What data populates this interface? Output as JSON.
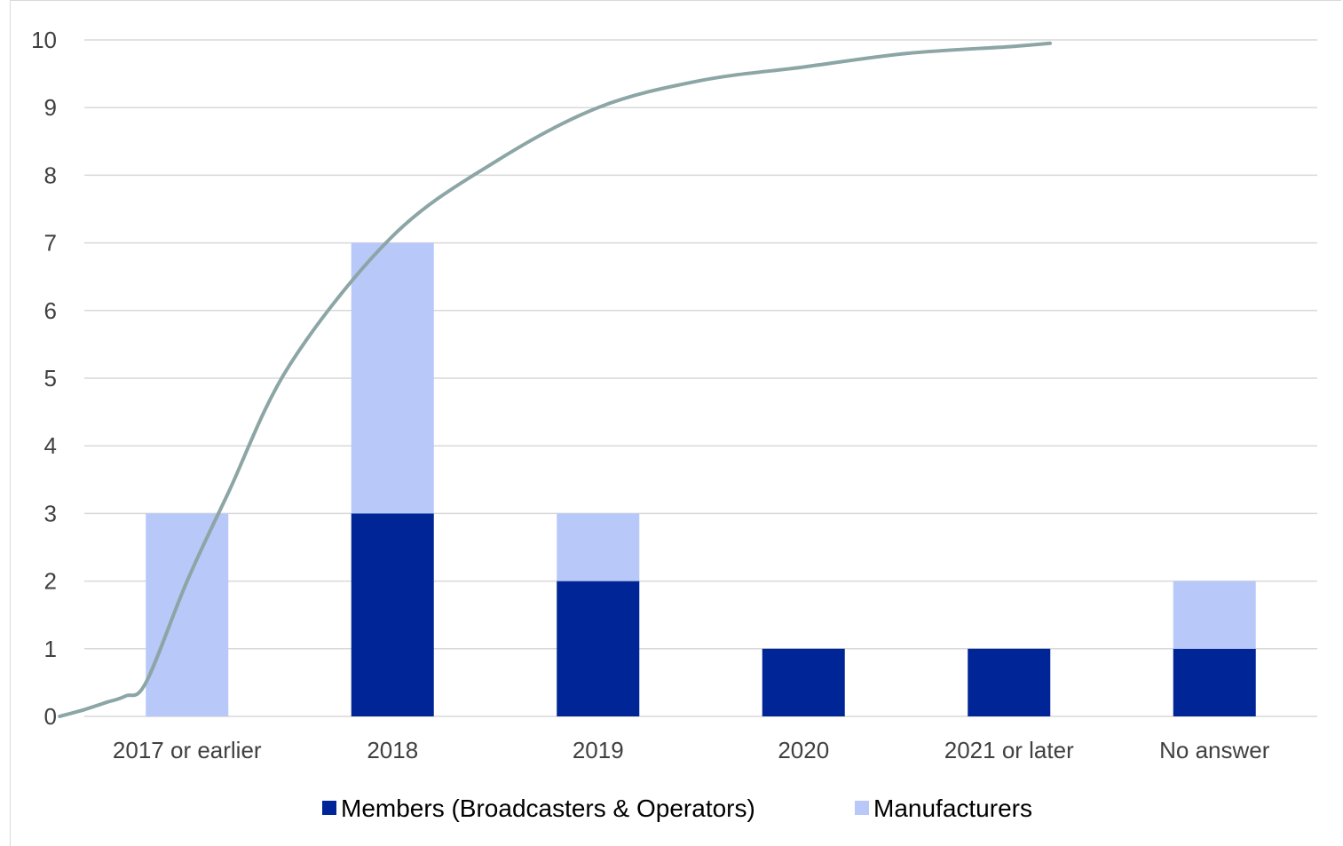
{
  "chart_data": {
    "type": "bar",
    "stacked": true,
    "categories": [
      "2017 or earlier",
      "2018",
      "2019",
      "2020",
      "2021 or later",
      "No answer"
    ],
    "series": [
      {
        "name": "Members (Broadcasters & Operators)",
        "color": "#002596",
        "values": [
          0,
          3,
          2,
          1,
          1,
          1
        ]
      },
      {
        "name": "Manufacturers",
        "color": "#b8c8f8",
        "values": [
          3,
          4,
          1,
          0,
          0,
          1
        ]
      }
    ],
    "trend_line": {
      "color": "#8ca5a5",
      "x": [
        -0.62,
        -0.5,
        -0.4,
        -0.3,
        -0.2,
        0.0,
        0.2,
        0.5,
        1.0,
        1.5,
        2.0,
        2.5,
        3.0,
        3.5,
        4.0,
        4.2
      ],
      "y": [
        0.0,
        0.1,
        0.2,
        0.3,
        0.5,
        2.0,
        3.3,
        5.2,
        7.1,
        8.2,
        9.0,
        9.4,
        9.6,
        9.8,
        9.9,
        9.95
      ]
    },
    "yticks": [
      0,
      1,
      2,
      3,
      4,
      5,
      6,
      7,
      8,
      9,
      10
    ],
    "ylim": [
      0,
      10
    ],
    "grid": true,
    "legend_position": "bottom",
    "title": "",
    "xlabel": "",
    "ylabel": ""
  }
}
